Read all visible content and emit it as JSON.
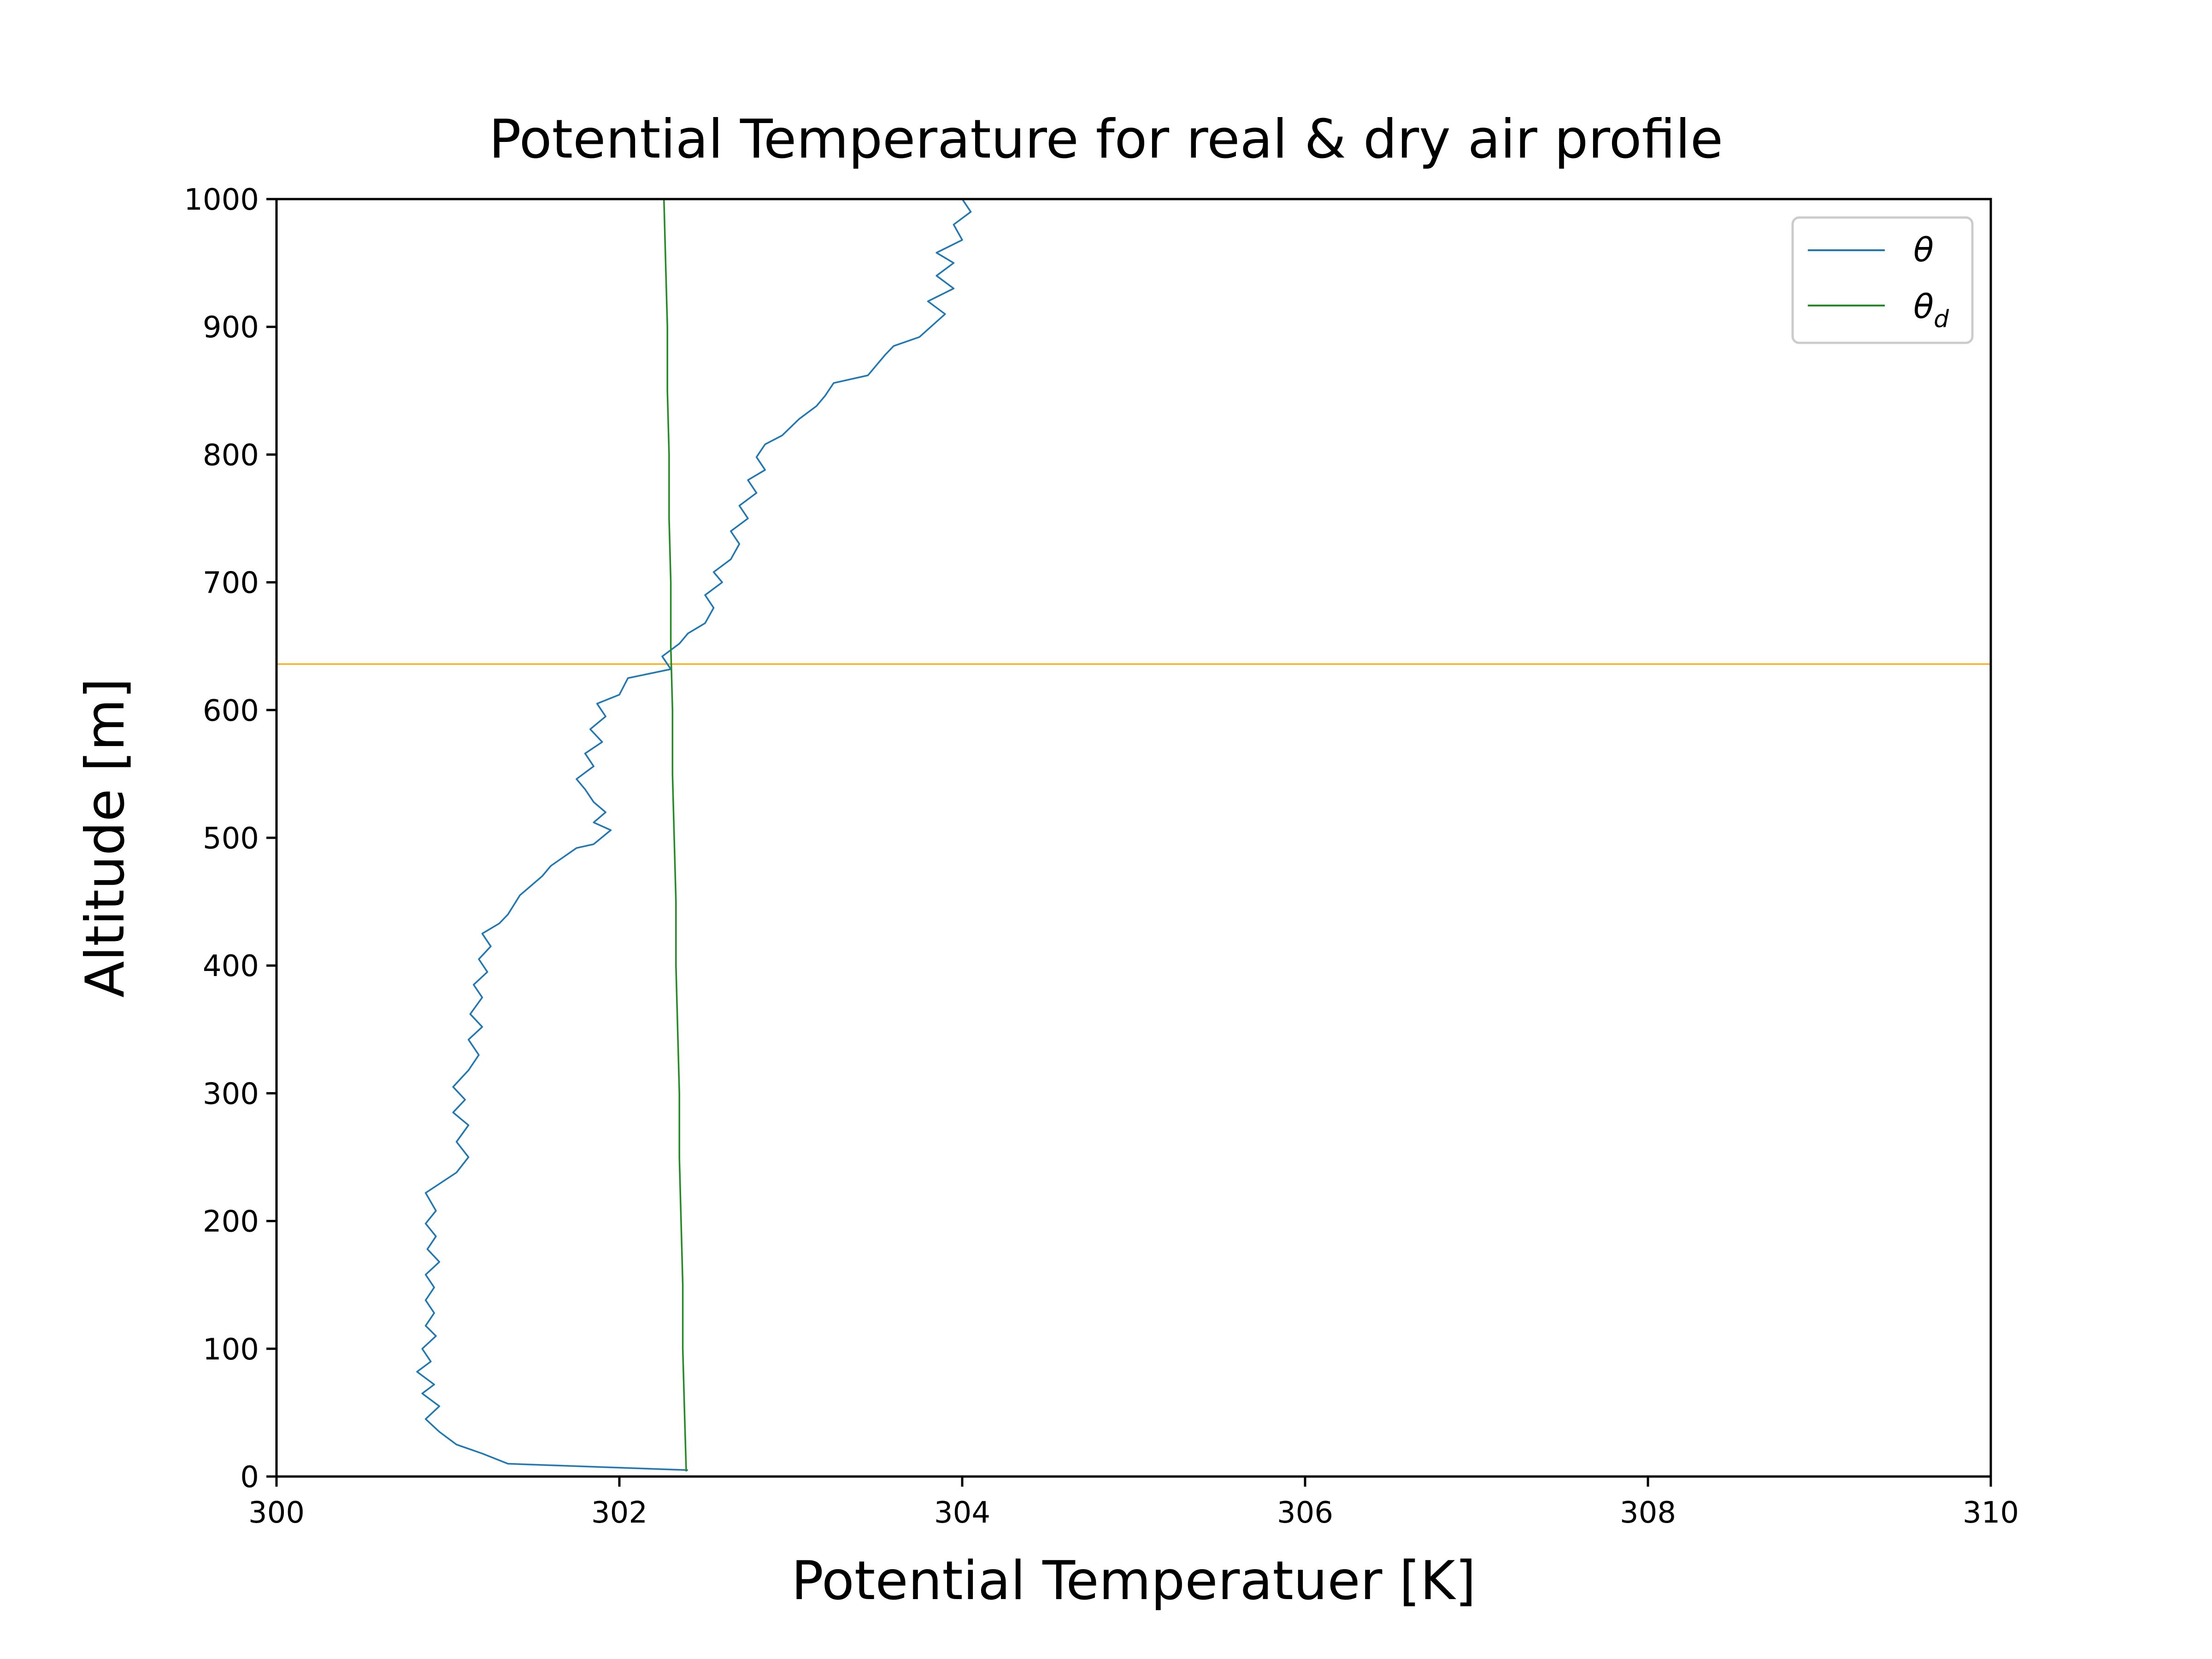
{
  "chart_data": {
    "type": "line",
    "title": "Potential Temperature for real & dry air profile",
    "xlabel": "Potential Temperatuer [K]",
    "ylabel": "Altitude [m]",
    "xlim": [
      300,
      310
    ],
    "ylim": [
      0,
      1000
    ],
    "xticks": [
      "300",
      "302",
      "304",
      "306",
      "308",
      "310"
    ],
    "yticks": [
      "0",
      "100",
      "200",
      "300",
      "400",
      "500",
      "600",
      "700",
      "800",
      "900",
      "1000"
    ],
    "legend_position": "top-right",
    "hline": {
      "y": 636,
      "color": "#ffa500"
    },
    "series": [
      {
        "name": "θ",
        "legend_symbol": "θ",
        "color": "#1f77b4",
        "points": [
          [
            302.4,
            5
          ],
          [
            301.35,
            10
          ],
          [
            301.2,
            18
          ],
          [
            301.05,
            25
          ],
          [
            300.95,
            35
          ],
          [
            300.87,
            45
          ],
          [
            300.95,
            55
          ],
          [
            300.85,
            65
          ],
          [
            300.92,
            72
          ],
          [
            300.82,
            82
          ],
          [
            300.9,
            90
          ],
          [
            300.85,
            100
          ],
          [
            300.93,
            110
          ],
          [
            300.87,
            118
          ],
          [
            300.92,
            128
          ],
          [
            300.87,
            138
          ],
          [
            300.92,
            148
          ],
          [
            300.87,
            158
          ],
          [
            300.95,
            168
          ],
          [
            300.88,
            178
          ],
          [
            300.93,
            188
          ],
          [
            300.87,
            198
          ],
          [
            300.93,
            208
          ],
          [
            300.87,
            222
          ],
          [
            301.05,
            238
          ],
          [
            301.12,
            250
          ],
          [
            301.05,
            262
          ],
          [
            301.12,
            275
          ],
          [
            301.03,
            285
          ],
          [
            301.1,
            295
          ],
          [
            301.03,
            305
          ],
          [
            301.12,
            318
          ],
          [
            301.18,
            330
          ],
          [
            301.12,
            342
          ],
          [
            301.2,
            352
          ],
          [
            301.13,
            362
          ],
          [
            301.2,
            375
          ],
          [
            301.15,
            385
          ],
          [
            301.23,
            395
          ],
          [
            301.18,
            405
          ],
          [
            301.25,
            415
          ],
          [
            301.2,
            425
          ],
          [
            301.3,
            433
          ],
          [
            301.35,
            440
          ],
          [
            301.42,
            455
          ],
          [
            301.55,
            470
          ],
          [
            301.6,
            478
          ],
          [
            301.75,
            492
          ],
          [
            301.85,
            495
          ],
          [
            301.95,
            506
          ],
          [
            301.85,
            512
          ],
          [
            301.92,
            520
          ],
          [
            301.85,
            528
          ],
          [
            301.8,
            538
          ],
          [
            301.75,
            546
          ],
          [
            301.85,
            556
          ],
          [
            301.8,
            566
          ],
          [
            301.9,
            575
          ],
          [
            301.83,
            585
          ],
          [
            301.92,
            595
          ],
          [
            301.87,
            605
          ],
          [
            302.0,
            612
          ],
          [
            302.05,
            625
          ],
          [
            302.3,
            632
          ],
          [
            302.28,
            636
          ],
          [
            302.25,
            642
          ],
          [
            302.35,
            652
          ],
          [
            302.4,
            660
          ],
          [
            302.5,
            668
          ],
          [
            302.55,
            680
          ],
          [
            302.5,
            690
          ],
          [
            302.6,
            700
          ],
          [
            302.55,
            708
          ],
          [
            302.65,
            718
          ],
          [
            302.7,
            730
          ],
          [
            302.65,
            740
          ],
          [
            302.75,
            750
          ],
          [
            302.7,
            760
          ],
          [
            302.8,
            770
          ],
          [
            302.75,
            780
          ],
          [
            302.85,
            788
          ],
          [
            302.8,
            798
          ],
          [
            302.85,
            808
          ],
          [
            302.95,
            815
          ],
          [
            303.05,
            828
          ],
          [
            303.15,
            838
          ],
          [
            303.2,
            846
          ],
          [
            303.25,
            856
          ],
          [
            303.45,
            862
          ],
          [
            303.55,
            878
          ],
          [
            303.6,
            885
          ],
          [
            303.75,
            892
          ],
          [
            303.9,
            910
          ],
          [
            303.8,
            920
          ],
          [
            303.95,
            930
          ],
          [
            303.85,
            940
          ],
          [
            303.95,
            950
          ],
          [
            303.85,
            958
          ],
          [
            304.0,
            968
          ],
          [
            303.95,
            980
          ],
          [
            304.05,
            990
          ],
          [
            304.0,
            1000
          ]
        ]
      },
      {
        "name": "θd",
        "legend_symbol": "θ",
        "legend_subscript": "d",
        "color": "#228b22",
        "points": [
          [
            302.39,
            4
          ],
          [
            302.38,
            50
          ],
          [
            302.37,
            100
          ],
          [
            302.37,
            150
          ],
          [
            302.36,
            200
          ],
          [
            302.35,
            250
          ],
          [
            302.35,
            300
          ],
          [
            302.34,
            350
          ],
          [
            302.33,
            400
          ],
          [
            302.33,
            450
          ],
          [
            302.32,
            500
          ],
          [
            302.31,
            550
          ],
          [
            302.31,
            600
          ],
          [
            302.3,
            650
          ],
          [
            302.3,
            700
          ],
          [
            302.29,
            750
          ],
          [
            302.29,
            800
          ],
          [
            302.28,
            850
          ],
          [
            302.28,
            900
          ],
          [
            302.27,
            950
          ],
          [
            302.26,
            1000
          ]
        ]
      }
    ]
  }
}
